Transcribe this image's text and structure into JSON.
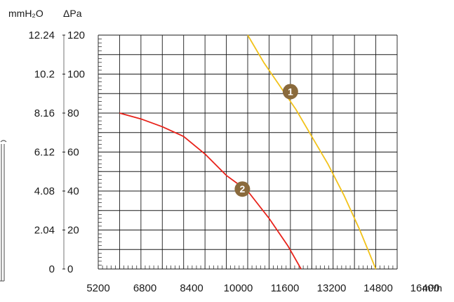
{
  "chart_data": {
    "type": "line",
    "title": "",
    "xlabel": "m³/h",
    "ylabel": "ΔPa",
    "ylabel_secondary": "mmH₂O",
    "x_ticks": [
      "5200",
      "6800",
      "8400",
      "10000",
      "11600",
      "13200",
      "14800",
      "16400"
    ],
    "y_ticks_pa": [
      "0",
      "20",
      "40",
      "60",
      "80",
      "100",
      "120"
    ],
    "y_ticks_mmh2o": [
      "0",
      "2.04",
      "4.08",
      "6.12",
      "8.16",
      "10.2",
      "12.24"
    ],
    "xlim": [
      5200,
      16400
    ],
    "ylim": [
      0,
      120
    ],
    "grid": true,
    "series": [
      {
        "name": "",
        "marker_label": "1",
        "color": "#f2c21a",
        "marker_x": 12400,
        "marker_y": 91,
        "x": [
          10800,
          11400,
          12000,
          12600,
          13200,
          13800,
          14400,
          15000,
          15600
        ],
        "y": [
          120,
          106,
          94,
          82,
          68,
          54,
          38,
          20,
          0
        ]
      },
      {
        "name": "",
        "marker_label": "2",
        "color": "#e8221a",
        "marker_x": 10600,
        "marker_y": 41,
        "x": [
          6000,
          6800,
          7600,
          8400,
          9200,
          10000,
          10800,
          11600,
          12300,
          12800
        ],
        "y": [
          80,
          77,
          73,
          68,
          59,
          48,
          40,
          26,
          12,
          0
        ]
      }
    ]
  },
  "colors": {
    "grid": "#1a1a1a",
    "marker_fill": "#8a6a3c",
    "text": "#1a1a1a"
  }
}
